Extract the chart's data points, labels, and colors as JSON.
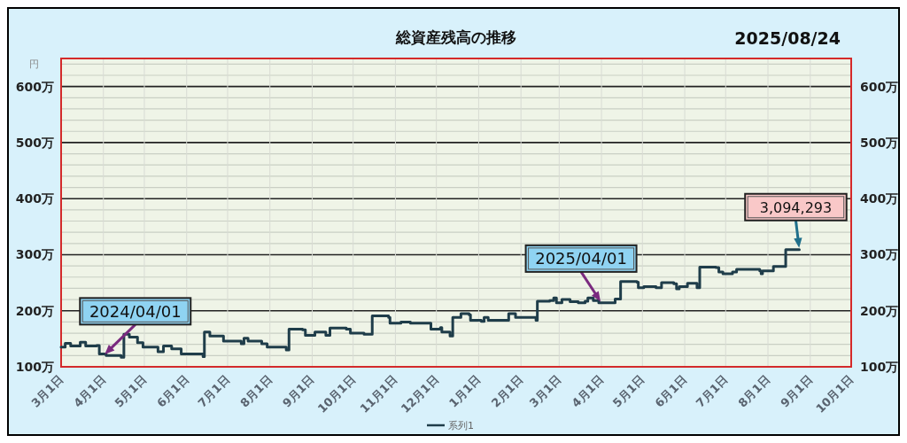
{
  "chart_data": {
    "type": "step",
    "title": "総資産残高の推移",
    "ylabel": "円",
    "xlim": [
      "2024-03-01",
      "2025-10-01"
    ],
    "xticks": [
      {
        "value": "2024-03-01",
        "label": "3月1日"
      },
      {
        "value": "2024-04-01",
        "label": "4月1日"
      },
      {
        "value": "2024-05-01",
        "label": "5月1日"
      },
      {
        "value": "2024-06-01",
        "label": "6月1日"
      },
      {
        "value": "2024-07-01",
        "label": "7月1日"
      },
      {
        "value": "2024-08-01",
        "label": "8月1日"
      },
      {
        "value": "2024-09-01",
        "label": "9月1日"
      },
      {
        "value": "2024-10-01",
        "label": "10月1日"
      },
      {
        "value": "2024-11-01",
        "label": "11月1日"
      },
      {
        "value": "2024-12-01",
        "label": "12月1日"
      },
      {
        "value": "2025-01-01",
        "label": "1月1日"
      },
      {
        "value": "2025-02-01",
        "label": "2月1日"
      },
      {
        "value": "2025-03-01",
        "label": "3月1日"
      },
      {
        "value": "2025-04-01",
        "label": "4月1日"
      },
      {
        "value": "2025-05-01",
        "label": "5月1日"
      },
      {
        "value": "2025-06-01",
        "label": "6月1日"
      },
      {
        "value": "2025-07-01",
        "label": "7月1日"
      },
      {
        "value": "2025-08-01",
        "label": "8月1日"
      },
      {
        "value": "2025-09-01",
        "label": "9月1日"
      },
      {
        "value": "2025-10-01",
        "label": "10月1日"
      }
    ],
    "ylim": [
      100,
      650
    ],
    "yticks": [
      {
        "value": 100,
        "label": "100万"
      },
      {
        "value": 120,
        "label": null
      },
      {
        "value": 140,
        "label": null
      },
      {
        "value": 160,
        "label": null
      },
      {
        "value": 180,
        "label": null
      },
      {
        "value": 200,
        "label": "200万"
      },
      {
        "value": 220,
        "label": null
      },
      {
        "value": 240,
        "label": null
      },
      {
        "value": 260,
        "label": null
      },
      {
        "value": 280,
        "label": null
      },
      {
        "value": 300,
        "label": "300万"
      },
      {
        "value": 320,
        "label": null
      },
      {
        "value": 340,
        "label": null
      },
      {
        "value": 360,
        "label": null
      },
      {
        "value": 380,
        "label": null
      },
      {
        "value": 400,
        "label": "400万"
      },
      {
        "value": 420,
        "label": null
      },
      {
        "value": 440,
        "label": null
      },
      {
        "value": 460,
        "label": null
      },
      {
        "value": 480,
        "label": null
      },
      {
        "value": 500,
        "label": "500万"
      },
      {
        "value": 520,
        "label": null
      },
      {
        "value": 540,
        "label": null
      },
      {
        "value": 560,
        "label": null
      },
      {
        "value": 580,
        "label": null
      },
      {
        "value": 600,
        "label": "600万"
      },
      {
        "value": 620,
        "label": null
      },
      {
        "value": 640,
        "label": null
      }
    ],
    "y2lim": [
      100,
      650
    ],
    "y2ticks": [
      {
        "value": 100,
        "label": "100万"
      },
      {
        "value": 200,
        "label": "200万"
      },
      {
        "value": 300,
        "label": "300万"
      },
      {
        "value": 400,
        "label": "400万"
      },
      {
        "value": 500,
        "label": "500万"
      },
      {
        "value": 600,
        "label": "600万"
      }
    ],
    "grid": true,
    "legend": "bottom",
    "line_style": "solid",
    "series": [
      {
        "name": "系列1",
        "color": "#1f3d4a",
        "x": [
          "2024-03-01",
          "2024-03-04",
          "2024-03-08",
          "2024-03-15",
          "2024-03-19",
          "2024-03-27",
          "2024-03-29",
          "2024-04-03",
          "2024-04-14",
          "2024-04-16",
          "2024-04-20",
          "2024-04-26",
          "2024-04-30",
          "2024-05-10",
          "2024-05-11",
          "2024-05-15",
          "2024-05-21",
          "2024-05-28",
          "2024-06-13",
          "2024-06-14",
          "2024-06-18",
          "2024-06-28",
          "2024-07-11",
          "2024-07-13",
          "2024-07-16",
          "2024-07-26",
          "2024-07-30",
          "2024-08-13",
          "2024-08-15",
          "2024-08-25",
          "2024-08-27",
          "2024-09-03",
          "2024-09-11",
          "2024-09-14",
          "2024-09-26",
          "2024-09-29",
          "2024-10-09",
          "2024-10-15",
          "2024-10-27",
          "2024-10-28",
          "2024-11-05",
          "2024-11-12",
          "2024-11-25",
          "2024-11-27",
          "2024-12-04",
          "2024-12-05",
          "2024-12-11",
          "2024-12-13",
          "2024-12-19",
          "2024-12-25",
          "2024-12-26",
          "2025-01-03",
          "2025-01-05",
          "2025-01-08",
          "2025-01-22",
          "2025-01-23",
          "2025-01-28",
          "2025-02-12",
          "2025-02-13",
          "2025-02-22",
          "2025-02-25",
          "2025-02-27",
          "2025-03-03",
          "2025-03-09",
          "2025-03-15",
          "2025-03-20",
          "2025-03-22",
          "2025-03-26",
          "2025-03-30",
          "2025-04-08",
          "2025-04-11",
          "2025-04-15",
          "2025-04-27",
          "2025-04-28",
          "2025-05-02",
          "2025-05-11",
          "2025-05-15",
          "2025-05-24",
          "2025-05-26",
          "2025-05-28",
          "2025-06-03",
          "2025-06-10",
          "2025-06-12",
          "2025-06-24",
          "2025-06-26",
          "2025-06-29",
          "2025-07-06",
          "2025-07-09",
          "2025-07-26",
          "2025-07-27",
          "2025-07-28",
          "2025-08-02",
          "2025-08-05",
          "2025-08-13",
          "2025-08-14",
          "2025-08-24"
        ],
        "values": [
          135,
          142,
          137,
          144,
          137,
          138,
          123,
          120,
          117,
          158,
          153,
          143,
          135,
          135,
          127,
          137,
          132,
          123,
          118,
          162,
          155,
          146,
          141,
          151,
          146,
          141,
          135,
          130,
          167,
          166,
          156,
          162,
          156,
          169,
          167,
          160,
          158,
          191,
          188,
          178,
          180,
          178,
          178,
          167,
          170,
          162,
          155,
          188,
          195,
          193,
          183,
          181,
          188,
          183,
          183,
          195,
          188,
          183,
          217,
          218,
          223,
          214,
          220,
          216,
          214,
          217,
          223,
          218,
          214,
          214,
          221,
          252,
          251,
          241,
          243,
          241,
          250,
          248,
          239,
          243,
          249,
          241,
          278,
          277,
          269,
          266,
          269,
          274,
          271,
          266,
          271,
          271,
          279,
          279,
          309,
          309
        ]
      }
    ],
    "annotations": [
      {
        "text": "2024/04/01",
        "x": "2024-04-01",
        "y": 120
      },
      {
        "text": "2025/04/01",
        "x": "2025-04-01",
        "y": 214
      },
      {
        "text": "3,094,293",
        "x": "2025-08-24",
        "y": 309
      },
      "2025/08/24"
    ]
  }
}
